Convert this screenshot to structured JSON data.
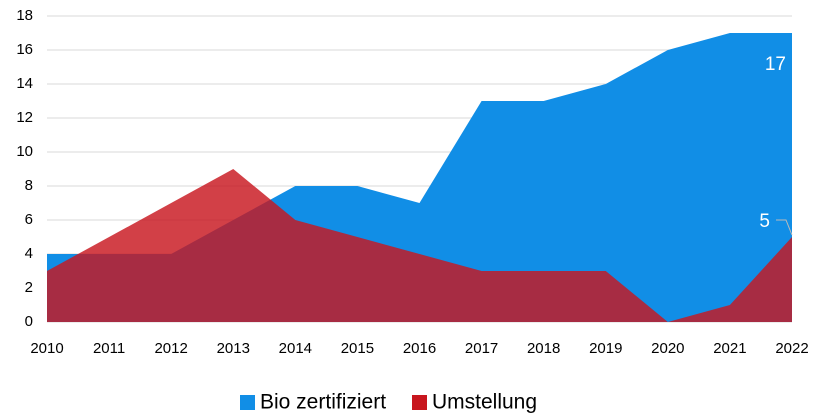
{
  "chart_data": {
    "type": "area",
    "categories": [
      "2010",
      "2011",
      "2012",
      "2013",
      "2014",
      "2015",
      "2016",
      "2017",
      "2018",
      "2019",
      "2020",
      "2021",
      "2022"
    ],
    "series": [
      {
        "name": "Bio zertifiziert",
        "color": "#118ee6",
        "values": [
          4,
          4,
          4,
          6,
          8,
          8,
          7,
          13,
          13,
          14,
          16,
          17,
          17
        ]
      },
      {
        "name": "Umstellung",
        "color": "#c8161e",
        "values": [
          3,
          5,
          7,
          9,
          6,
          5,
          4,
          3,
          3,
          3,
          0,
          1,
          5
        ]
      }
    ],
    "ylim": [
      0,
      18
    ],
    "yticks": [
      0,
      2,
      4,
      6,
      8,
      10,
      12,
      14,
      16,
      18
    ],
    "grid": true,
    "legend": "bottom"
  }
}
